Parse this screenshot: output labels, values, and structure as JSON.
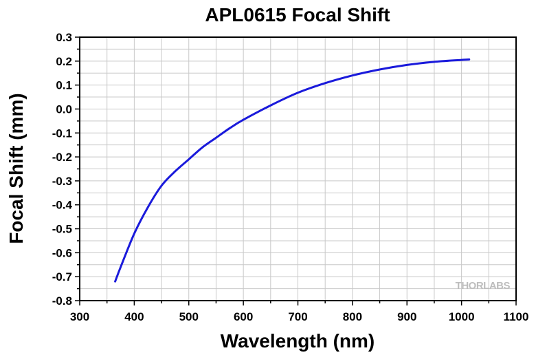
{
  "chart_data": {
    "type": "line",
    "title": "APL0615 Focal Shift",
    "xlabel": "Wavelength (nm)",
    "ylabel": "Focal Shift (mm)",
    "xlim": [
      300,
      1100
    ],
    "ylim": [
      -0.8,
      0.3
    ],
    "x_ticks": [
      "300",
      "400",
      "500",
      "600",
      "700",
      "800",
      "900",
      "1000",
      "1100"
    ],
    "y_ticks": [
      "0.3",
      "0.2",
      "0.1",
      "0.0",
      "-0.1",
      "-0.2",
      "-0.3",
      "-0.4",
      "-0.5",
      "-0.6",
      "-0.7",
      "-0.8"
    ],
    "grid": true,
    "series": [
      {
        "color": "#1a1adb",
        "x": [
          365,
          375,
          400,
          425,
          450,
          475,
          500,
          525,
          550,
          575,
          600,
          650,
          700,
          750,
          800,
          850,
          900,
          950,
          1000,
          1014
        ],
        "y": [
          -0.72,
          -0.66,
          -0.52,
          -0.41,
          -0.32,
          -0.26,
          -0.21,
          -0.16,
          -0.12,
          -0.08,
          -0.045,
          0.015,
          0.068,
          0.108,
          0.14,
          0.165,
          0.184,
          0.197,
          0.205,
          0.207
        ]
      }
    ]
  },
  "watermark": {
    "text": "THORLABS"
  }
}
